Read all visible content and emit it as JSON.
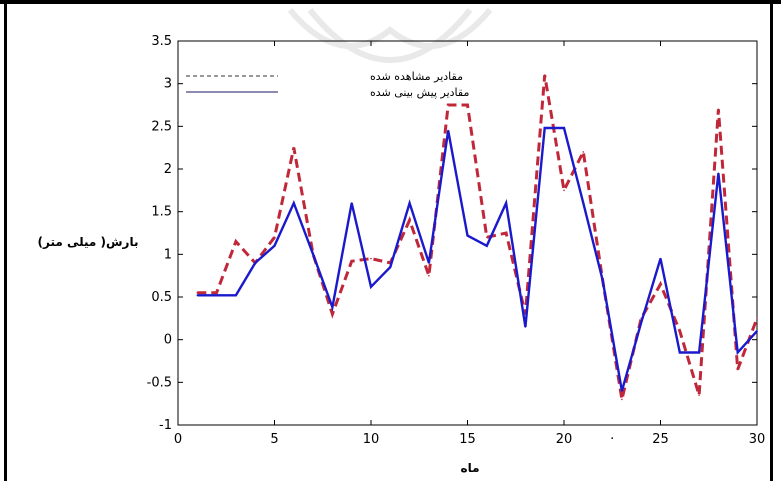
{
  "chart_data": {
    "type": "line",
    "xlabel": "ماه",
    "ylabel": "بارش( میلی متر)",
    "xlim": [
      0,
      30
    ],
    "ylim": [
      -1,
      3.5
    ],
    "x_ticks": [
      "0",
      "5",
      "10",
      "15",
      "20",
      "·",
      "25",
      "30"
    ],
    "x_tick_values": [
      0,
      5,
      10,
      15,
      20,
      22.5,
      25,
      30
    ],
    "y_ticks": [
      "-1",
      "-0.5",
      "0",
      "0.5",
      "1",
      "1.5",
      "2",
      "2.5",
      "3",
      "3.5"
    ],
    "y_tick_values": [
      -1,
      -0.5,
      0,
      0.5,
      1,
      1.5,
      2,
      2.5,
      3,
      3.5
    ],
    "legend_position": "top-left",
    "grid": false,
    "series": [
      {
        "name": "مقادیر مشاهده شده",
        "color": "#c0283a",
        "style": "dashed",
        "points": [
          [
            1,
            0.55
          ],
          [
            2,
            0.55
          ],
          [
            3,
            1.15
          ],
          [
            4,
            0.9
          ],
          [
            5,
            1.2
          ],
          [
            6,
            2.25
          ],
          [
            7,
            1.0
          ],
          [
            8,
            0.3
          ],
          [
            9,
            0.92
          ],
          [
            10,
            0.95
          ],
          [
            11,
            0.9
          ],
          [
            12,
            1.4
          ],
          [
            13,
            0.75
          ],
          [
            14,
            2.75
          ],
          [
            15,
            2.75
          ],
          [
            16,
            1.2
          ],
          [
            17,
            1.25
          ],
          [
            18,
            0.3
          ],
          [
            19,
            3.1
          ],
          [
            20,
            1.75
          ],
          [
            21,
            2.2
          ],
          [
            22,
            0.7
          ],
          [
            23,
            -0.7
          ],
          [
            24,
            0.25
          ],
          [
            25,
            0.65
          ],
          [
            26,
            0.1
          ],
          [
            27,
            -0.65
          ],
          [
            28,
            2.7
          ],
          [
            29,
            -0.35
          ],
          [
            30,
            0.25
          ]
        ]
      },
      {
        "name": "مقادیر پیش بینی شده",
        "color": "#1a1acc",
        "style": "solid",
        "points": [
          [
            1,
            0.52
          ],
          [
            2,
            0.52
          ],
          [
            3,
            0.52
          ],
          [
            4,
            0.9
          ],
          [
            5,
            1.1
          ],
          [
            6,
            1.6
          ],
          [
            7,
            1.0
          ],
          [
            8,
            0.38
          ],
          [
            9,
            1.6
          ],
          [
            10,
            0.62
          ],
          [
            11,
            0.85
          ],
          [
            12,
            1.6
          ],
          [
            13,
            0.9
          ],
          [
            14,
            2.45
          ],
          [
            15,
            1.22
          ],
          [
            16,
            1.1
          ],
          [
            17,
            1.6
          ],
          [
            18,
            0.15
          ],
          [
            19,
            2.48
          ],
          [
            20,
            2.48
          ],
          [
            21,
            1.6
          ],
          [
            22,
            0.7
          ],
          [
            23,
            -0.6
          ],
          [
            24,
            0.2
          ],
          [
            25,
            0.95
          ],
          [
            26,
            -0.15
          ],
          [
            27,
            -0.15
          ],
          [
            28,
            1.95
          ],
          [
            29,
            -0.15
          ],
          [
            30,
            0.1
          ]
        ]
      }
    ]
  }
}
